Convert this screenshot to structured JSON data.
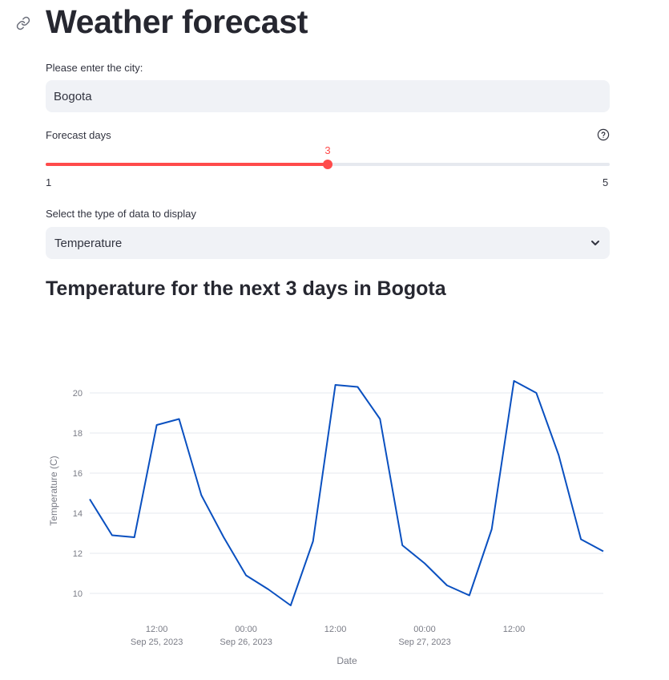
{
  "header": {
    "title": "Weather forecast"
  },
  "city_input": {
    "label": "Please enter the city:",
    "value": "Bogota"
  },
  "forecast_slider": {
    "label": "Forecast days",
    "value": "3",
    "min": "1",
    "max": "5"
  },
  "data_type_select": {
    "label": "Select the type of data to display",
    "selected": "Temperature"
  },
  "section": {
    "title": "Temperature for the next 3 days in Bogota"
  },
  "colors": {
    "accent": "#ff4b4b",
    "line": "#0a50c0",
    "input_bg": "#f0f2f6"
  },
  "chart_data": {
    "type": "line",
    "title": "",
    "xlabel": "Date",
    "ylabel": "Temperature (C)",
    "x": [
      "2023-09-25 03:00",
      "2023-09-25 06:00",
      "2023-09-25 09:00",
      "2023-09-25 12:00",
      "2023-09-25 15:00",
      "2023-09-25 18:00",
      "2023-09-25 21:00",
      "2023-09-26 00:00",
      "2023-09-26 03:00",
      "2023-09-26 06:00",
      "2023-09-26 09:00",
      "2023-09-26 12:00",
      "2023-09-26 15:00",
      "2023-09-26 18:00",
      "2023-09-26 21:00",
      "2023-09-27 00:00",
      "2023-09-27 03:00",
      "2023-09-27 06:00",
      "2023-09-27 09:00",
      "2023-09-27 12:00",
      "2023-09-27 15:00",
      "2023-09-27 18:00",
      "2023-09-27 21:00",
      "2023-09-28 00:00"
    ],
    "series": [
      {
        "values": [
          14.7,
          12.9,
          12.8,
          18.4,
          18.7,
          14.9,
          12.8,
          10.9,
          10.2,
          9.4,
          12.6,
          20.4,
          20.3,
          18.7,
          12.4,
          11.5,
          10.4,
          9.9,
          13.2,
          20.6,
          20.0,
          16.9,
          12.7,
          12.1
        ]
      }
    ],
    "yticks": [
      "10",
      "12",
      "14",
      "16",
      "18",
      "20"
    ],
    "xticks": [
      {
        "x": "2023-09-25 12:00",
        "line1": "12:00",
        "line2": "Sep 25, 2023"
      },
      {
        "x": "2023-09-26 00:00",
        "line1": "00:00",
        "line2": "Sep 26, 2023"
      },
      {
        "x": "2023-09-26 12:00",
        "line1": "12:00",
        "line2": ""
      },
      {
        "x": "2023-09-27 00:00",
        "line1": "00:00",
        "line2": "Sep 27, 2023"
      },
      {
        "x": "2023-09-27 12:00",
        "line1": "12:00",
        "line2": ""
      }
    ],
    "xlim": [
      "2023-09-25 03:00",
      "2023-09-28 00:00"
    ],
    "ylim": [
      9.0,
      21.2
    ],
    "grid": true,
    "legend": "none"
  }
}
